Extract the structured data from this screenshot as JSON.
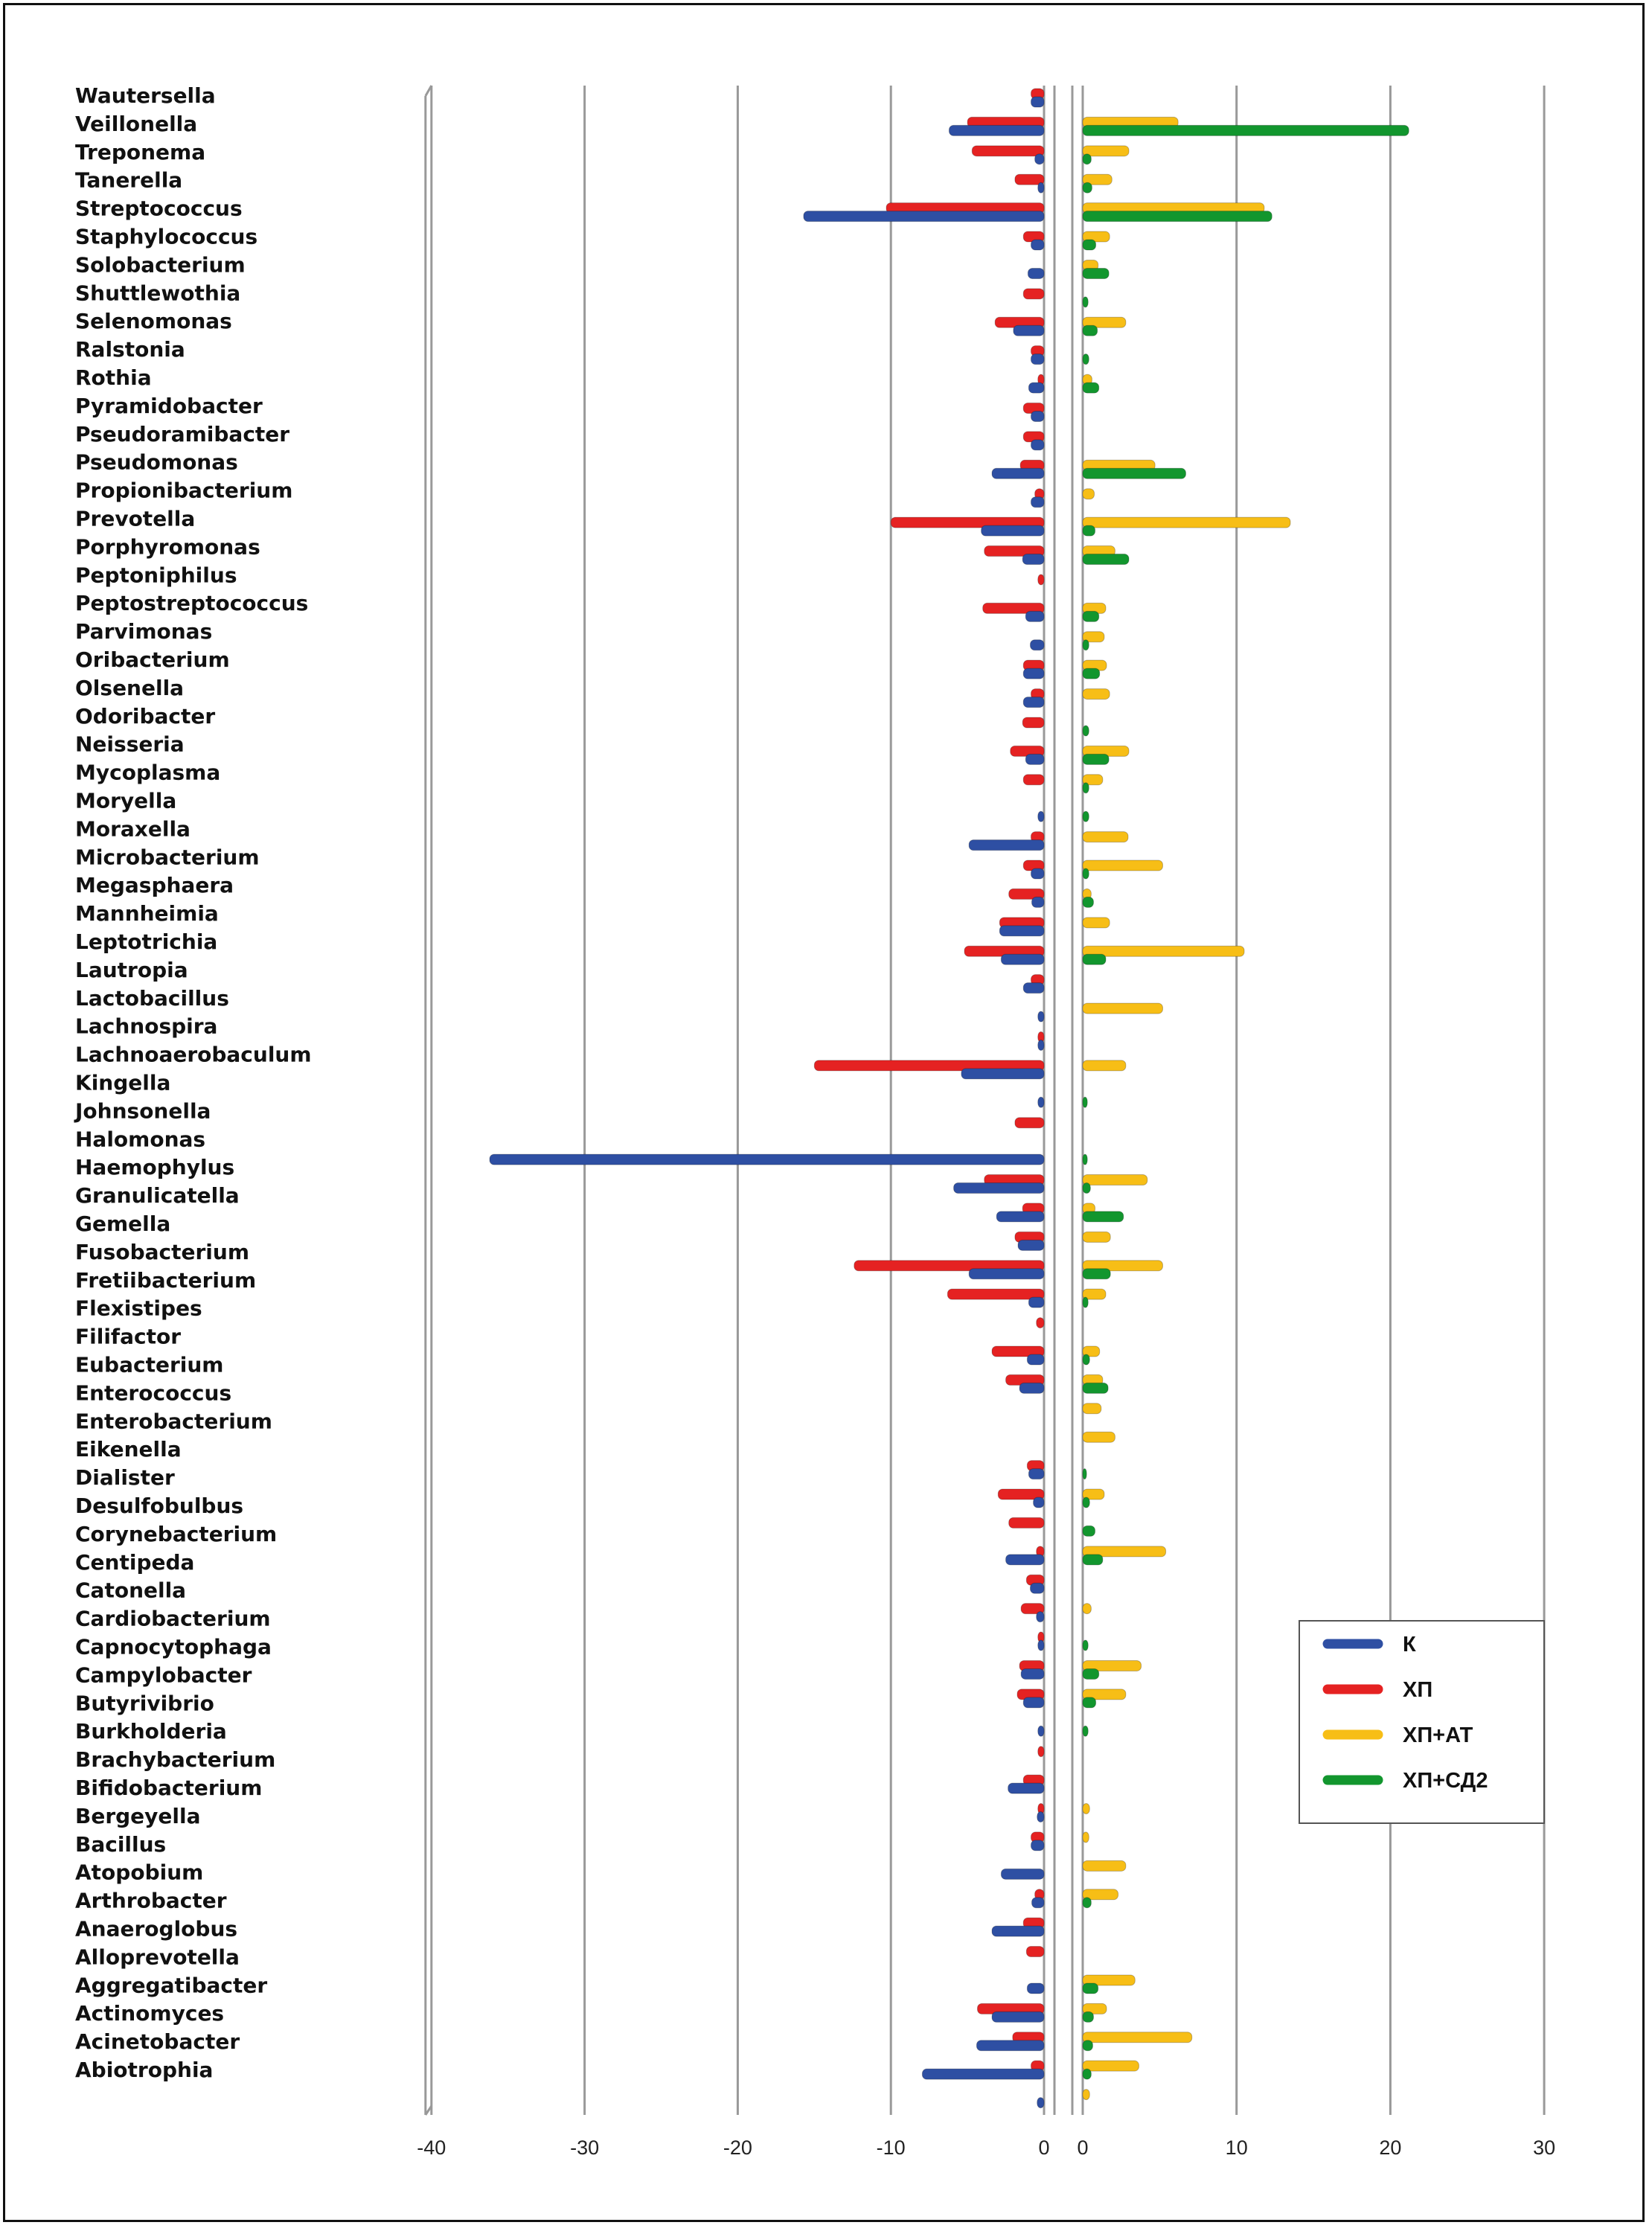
{
  "chart_data": {
    "type": "bar",
    "orientation": "horizontal",
    "panels": [
      {
        "series": [
          "К",
          "ХП"
        ],
        "xlim": [
          -40,
          0
        ],
        "ticks": [
          "-40",
          "-30",
          "-20",
          "-10",
          "0"
        ]
      },
      {
        "series": [
          "ХП+АТ",
          "ХП+СД2"
        ],
        "xlim": [
          0,
          30
        ],
        "ticks": [
          "0",
          "10",
          "20",
          "30"
        ]
      }
    ],
    "grid": true,
    "legend_position": "bottom-right",
    "categories": [
      "Wautersella",
      "Veillonella",
      "Treponema",
      "Tanerella",
      "Streptococcus",
      "Staphylococcus",
      "Solobacterium",
      "Shuttlewothia",
      "Selenomonas",
      "Ralstonia",
      "Rothia",
      "Pyramidobacter",
      "Pseudoramibacter",
      "Pseudomonas",
      "Propionibacterium",
      "Prevotella",
      "Porphyromonas",
      "Peptoniphilus",
      "Peptostreptococcus",
      "Parvimonas",
      "Oribacterium",
      "Olsenella",
      "Odoribacter",
      "Neisseria",
      "Mycoplasma",
      "Moryella",
      "Moraxella",
      "Microbacterium",
      "Megasphaera",
      "Mannheimia",
      "Leptotrichia",
      "Lautropia",
      "Lactobacillus",
      "Lachnospira",
      "Lachnoaerobaculum",
      "Kingella",
      "Johnsonella",
      "Halomonas",
      "Haemophylus",
      "Granulicatella",
      "Gemella",
      "Fusobacterium",
      "Fretiibacterium",
      "Flexistipes",
      "Filifactor",
      "Eubacterium",
      "Enterococcus",
      "Enterobacterium",
      "Eikenella",
      "Dialister",
      "Desulfobulbus",
      "Corynebacterium",
      "Centipeda",
      "Catonella",
      "Cardiobacterium",
      "Capnocytophaga",
      "Campylobacter",
      "Butyrivibrio",
      "Burkholderia",
      "Brachybacterium",
      "Bifidobacterium",
      "Bergeyella",
      "Bacillus",
      "Atopobium",
      "Arthrobacter",
      "Anaeroglobus",
      "Alloprevotella",
      "Aggregatibacter",
      "Actinomyces",
      "Acinetobacter",
      "Abiotrophia"
    ],
    "series": [
      {
        "name": "К",
        "color": "#2E4FA3",
        "values": [
          -0.85,
          -6.2,
          -0.6,
          -0.4,
          -15.7,
          -0.85,
          -1.05,
          0,
          -2.0,
          -0.85,
          -1.0,
          -0.85,
          -0.85,
          -3.4,
          -0.85,
          -4.1,
          -1.4,
          0,
          -1.2,
          -0.9,
          -1.35,
          -1.35,
          0,
          -1.2,
          0,
          -0.4,
          -4.9,
          -0.85,
          -0.8,
          -2.9,
          -2.8,
          -1.35,
          -0.4,
          -0.4,
          -5.4,
          -0.4,
          0,
          -36.2,
          -5.9,
          -3.1,
          -1.7,
          -4.9,
          -1.0,
          0,
          -1.1,
          -1.6,
          0,
          0,
          -1.0,
          -0.7,
          0,
          -2.5,
          -0.9,
          -0.5,
          -0.4,
          -1.5,
          -1.35,
          -0.4,
          0,
          -2.35,
          -0.45,
          -0.85,
          -2.8,
          -0.8,
          -3.4,
          0,
          -1.1,
          -3.4,
          -4.4,
          -7.95,
          -0.45
        ]
      },
      {
        "name": "ХП",
        "color": "#E52222",
        "values": [
          -0.85,
          -5.0,
          -4.7,
          -1.9,
          -10.3,
          -1.35,
          0,
          -1.35,
          -3.2,
          -0.85,
          -0.4,
          -1.35,
          -1.35,
          -1.55,
          -0.6,
          -10.0,
          -3.9,
          -0.4,
          -4.0,
          0,
          -1.35,
          -0.85,
          -1.4,
          -2.2,
          -1.35,
          0,
          -0.85,
          -1.35,
          -2.3,
          -2.9,
          -5.2,
          -0.85,
          0,
          -0.4,
          -15.0,
          0,
          -1.9,
          0,
          -3.9,
          -1.4,
          -1.9,
          -12.4,
          -6.3,
          -0.5,
          -3.4,
          -2.5,
          0,
          0,
          -1.1,
          -3.0,
          -2.3,
          -0.5,
          -1.15,
          -1.5,
          -0.4,
          -1.6,
          -1.75,
          0,
          -0.4,
          -1.35,
          -0.4,
          -0.85,
          0,
          -0.6,
          -1.35,
          -1.15,
          0,
          -4.35,
          -2.05,
          -0.85,
          0
        ]
      },
      {
        "name": "ХП+АТ",
        "color": "#F7BE16",
        "values": [
          0,
          6.2,
          3.0,
          1.9,
          11.8,
          1.75,
          1.0,
          0,
          2.8,
          0,
          0.6,
          0,
          0,
          4.7,
          0.75,
          13.5,
          2.1,
          0,
          1.5,
          1.4,
          1.55,
          1.75,
          0,
          3.0,
          1.3,
          0,
          2.95,
          5.2,
          0.55,
          1.75,
          10.5,
          0,
          5.2,
          0,
          2.8,
          0,
          0,
          0,
          4.2,
          0.8,
          1.8,
          5.2,
          1.5,
          0,
          1.1,
          1.3,
          1.2,
          2.1,
          0,
          1.4,
          0,
          5.4,
          0,
          0.55,
          0,
          3.8,
          2.8,
          0,
          0,
          0,
          0.45,
          0.4,
          2.8,
          2.3,
          0,
          0,
          3.4,
          1.55,
          7.1,
          3.65,
          0.45
        ]
      },
      {
        "name": "ХП+СД2",
        "color": "#12962E",
        "values": [
          0,
          21.2,
          0.55,
          0.6,
          12.3,
          0.85,
          1.7,
          0.35,
          0.95,
          0.4,
          1.05,
          0,
          0,
          6.7,
          0,
          0.8,
          3.0,
          0,
          1.05,
          0.4,
          1.1,
          0,
          0.4,
          1.7,
          0.4,
          0.4,
          0,
          0.4,
          0.7,
          0,
          1.5,
          0,
          0,
          0,
          0,
          0.3,
          0,
          0.3,
          0.5,
          2.65,
          0,
          1.8,
          0.35,
          0,
          0.45,
          1.65,
          0,
          0,
          0.25,
          0.45,
          0.8,
          1.3,
          0,
          0,
          0.35,
          1.05,
          0.85,
          0.35,
          0,
          0,
          0,
          0,
          0,
          0.55,
          0,
          0,
          1.0,
          0.7,
          0.65,
          0.55,
          0
        ]
      }
    ]
  }
}
